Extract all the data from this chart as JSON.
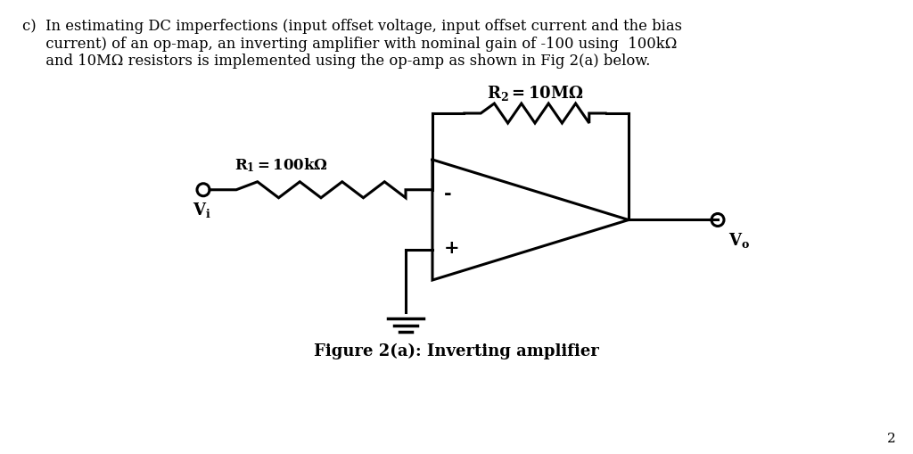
{
  "background_color": "#ffffff",
  "text_color": "#000000",
  "title_text": "Figure 2(a): Inverting amplifier",
  "paragraph_line1": "c)  In estimating DC imperfections (input offset voltage, input offset current and the bias",
  "paragraph_line2": "     current) of an op-map, an inverting amplifier with nominal gain of -100 using  100kΩ",
  "paragraph_line3": "     and 10MΩ resistors is implemented using the op-amp as shown in Fig 2(a) below.",
  "R2_label": "$\\mathbf{R_2=10M\\Omega}$",
  "R1_label": "$\\mathbf{R_1=100k\\Omega}$",
  "Vi_label": "$\\mathbf{V_i}$",
  "Vo_label": "$\\mathbf{V_o}$",
  "minus_label": "-",
  "plus_label": "+",
  "page_number": "2",
  "lw": 2.2
}
